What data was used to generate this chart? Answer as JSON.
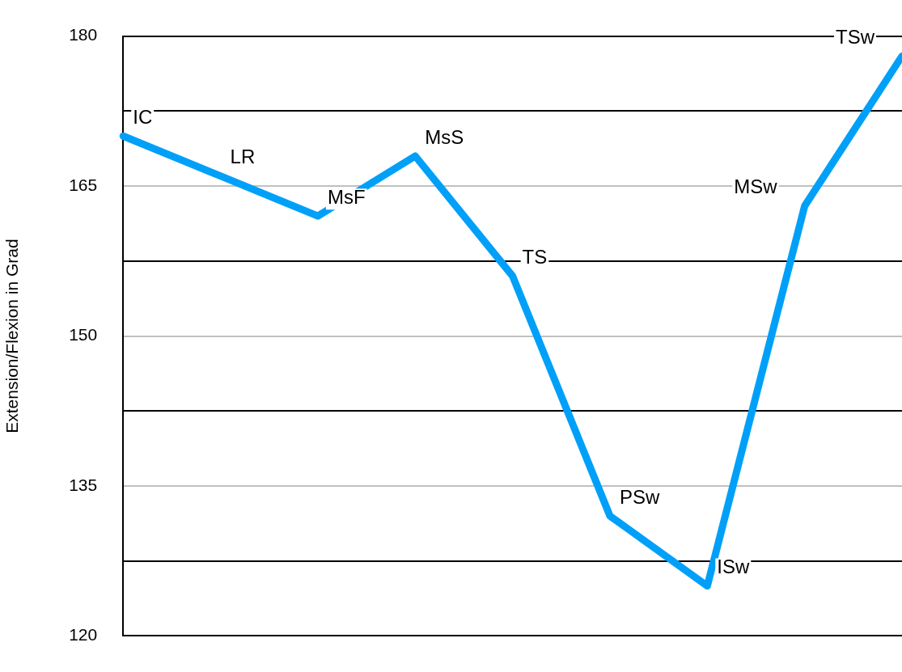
{
  "chart_data": {
    "type": "line",
    "ylabel": "Extension/Flexion in Grad",
    "categories": [
      null,
      null,
      null,
      null,
      null,
      null,
      null,
      null,
      null
    ],
    "series": [
      {
        "color": "#00a0f8",
        "values": [
          170,
          166,
          162,
          168,
          156,
          132,
          125,
          163,
          178
        ],
        "value_labels": [
          "IC",
          "LR",
          "MsF",
          "MsS",
          "TS",
          "PSw",
          "ISw",
          "MSw",
          "TSw"
        ]
      }
    ],
    "ylim": [
      120,
      180
    ],
    "yticks": [
      120,
      {
        "value": 127.5,
        "label": null
      },
      135,
      {
        "value": 142.5,
        "label": null
      },
      150,
      {
        "value": 157.5,
        "label": null
      },
      165,
      {
        "value": 172.5,
        "label": null
      },
      180
    ],
    "grid": "y",
    "marker": "none",
    "line_style": "solid",
    "tick_labels": "y",
    "legend": false
  }
}
